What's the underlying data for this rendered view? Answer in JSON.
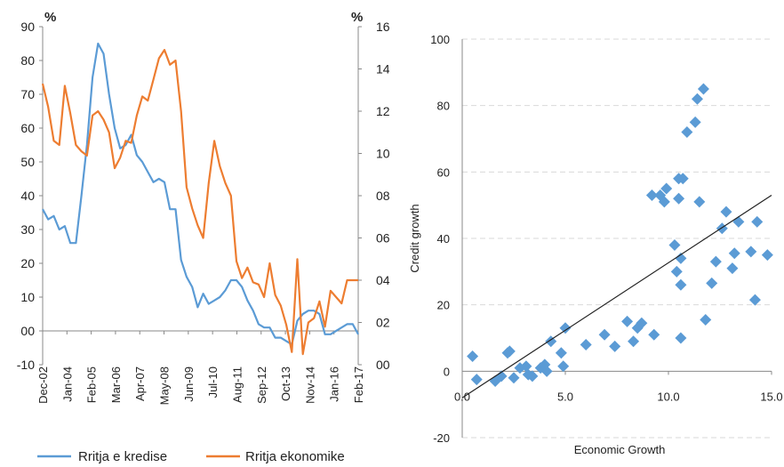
{
  "colors": {
    "credit": "#5b9bd5",
    "economic": "#ed7d31",
    "scatter": "#5b9bd5",
    "grid": "#d9d9d9",
    "axis": "#888888",
    "text": "#222222"
  },
  "chart_data": [
    {
      "type": "line",
      "left_unit": "%",
      "right_unit": "%",
      "x_ticks": [
        "Dec-02",
        "Jan-04",
        "Feb-05",
        "Mar-06",
        "Apr-07",
        "May-08",
        "Jun-09",
        "Jul-10",
        "Aug-11",
        "Sep-12",
        "Oct-13",
        "Nov-14",
        "Jan-16",
        "Feb-17"
      ],
      "y_left_ticks": [
        "90",
        "80",
        "70",
        "60",
        "50",
        "40",
        "30",
        "20",
        "10",
        "00",
        "-10"
      ],
      "y_right_ticks": [
        "16",
        "14",
        "12",
        "10",
        "08",
        "06",
        "04",
        "02",
        "00"
      ],
      "ylim_left": [
        -10,
        90
      ],
      "ylim_right": [
        0,
        16
      ],
      "series": [
        {
          "name": "Rritja e kredise",
          "axis": "left",
          "values": [
            36,
            33,
            34,
            30,
            31,
            26,
            26,
            40,
            55,
            75,
            85,
            82,
            70,
            60,
            54,
            55,
            58,
            52,
            50,
            47,
            44,
            45,
            44,
            36,
            36,
            21,
            16,
            13,
            7,
            11,
            8,
            9,
            10,
            12,
            15,
            15,
            13,
            9,
            6,
            2,
            1,
            1,
            -2,
            -2,
            -3,
            -4,
            3,
            5,
            6,
            6,
            5,
            -1,
            -1,
            0,
            1,
            2,
            2,
            -1
          ]
        },
        {
          "name": "Rritja ekonomike",
          "axis": "right",
          "values": [
            13.3,
            12.2,
            10.6,
            10.4,
            13.2,
            11.9,
            10.4,
            10.1,
            9.9,
            11.8,
            12.0,
            11.6,
            11.0,
            9.3,
            9.8,
            10.6,
            10.5,
            11.8,
            12.7,
            12.5,
            13.5,
            14.5,
            14.9,
            14.2,
            14.4,
            12.0,
            8.4,
            7.4,
            6.6,
            6.0,
            8.6,
            10.6,
            9.4,
            8.6,
            8.0,
            4.9,
            4.1,
            4.6,
            3.9,
            3.8,
            3.2,
            4.8,
            3.3,
            2.8,
            1.9,
            0.6,
            5.0,
            0.5,
            2.0,
            2.2,
            3.0,
            1.8,
            3.5,
            3.2,
            2.9,
            4.0,
            4.0,
            4.0
          ]
        }
      ]
    },
    {
      "type": "scatter",
      "xlabel": "Economic Growth",
      "ylabel": "Credit growth",
      "xlim": [
        0,
        15
      ],
      "ylim": [
        -20,
        100
      ],
      "x_tick_labels": [
        "0.0",
        "5.0",
        "10.0",
        "15.0"
      ],
      "y_tick_labels": [
        "100",
        "80",
        "60",
        "40",
        "20",
        "0",
        "-20"
      ],
      "trendline": {
        "x0": 0,
        "y0": -8,
        "x1": 15,
        "y1": 53
      },
      "points": [
        {
          "x": 0.5,
          "y": 4.5
        },
        {
          "x": 0.7,
          "y": -2.5
        },
        {
          "x": 1.6,
          "y": -3
        },
        {
          "x": 1.9,
          "y": -1.5
        },
        {
          "x": 2.2,
          "y": 5.5
        },
        {
          "x": 2.3,
          "y": 6
        },
        {
          "x": 2.5,
          "y": -2
        },
        {
          "x": 2.8,
          "y": 1
        },
        {
          "x": 3.1,
          "y": 1.5
        },
        {
          "x": 3.2,
          "y": -1
        },
        {
          "x": 3.4,
          "y": -1.5
        },
        {
          "x": 3.8,
          "y": 1
        },
        {
          "x": 4.0,
          "y": 2
        },
        {
          "x": 4.1,
          "y": 0
        },
        {
          "x": 4.3,
          "y": 9
        },
        {
          "x": 4.8,
          "y": 5.5
        },
        {
          "x": 4.9,
          "y": 1.5
        },
        {
          "x": 5.0,
          "y": 13
        },
        {
          "x": 6.0,
          "y": 8
        },
        {
          "x": 6.9,
          "y": 11
        },
        {
          "x": 7.4,
          "y": 7.5
        },
        {
          "x": 8.0,
          "y": 15
        },
        {
          "x": 8.3,
          "y": 9
        },
        {
          "x": 8.5,
          "y": 13
        },
        {
          "x": 8.7,
          "y": 14.5
        },
        {
          "x": 9.2,
          "y": 53
        },
        {
          "x": 9.3,
          "y": 11
        },
        {
          "x": 9.6,
          "y": 53
        },
        {
          "x": 9.8,
          "y": 51
        },
        {
          "x": 9.9,
          "y": 55
        },
        {
          "x": 10.3,
          "y": 38
        },
        {
          "x": 10.4,
          "y": 30
        },
        {
          "x": 10.5,
          "y": 52
        },
        {
          "x": 10.5,
          "y": 58
        },
        {
          "x": 10.6,
          "y": 34
        },
        {
          "x": 10.6,
          "y": 26
        },
        {
          "x": 10.7,
          "y": 58
        },
        {
          "x": 10.9,
          "y": 72
        },
        {
          "x": 10.6,
          "y": 10
        },
        {
          "x": 11.3,
          "y": 75
        },
        {
          "x": 11.4,
          "y": 82
        },
        {
          "x": 11.5,
          "y": 51
        },
        {
          "x": 11.7,
          "y": 85
        },
        {
          "x": 11.8,
          "y": 15.5
        },
        {
          "x": 12.1,
          "y": 26.5
        },
        {
          "x": 12.3,
          "y": 33
        },
        {
          "x": 12.6,
          "y": 43
        },
        {
          "x": 12.8,
          "y": 48
        },
        {
          "x": 13.1,
          "y": 31
        },
        {
          "x": 13.2,
          "y": 35.5
        },
        {
          "x": 13.4,
          "y": 45
        },
        {
          "x": 14.0,
          "y": 36
        },
        {
          "x": 14.2,
          "y": 21.5
        },
        {
          "x": 14.3,
          "y": 45
        },
        {
          "x": 14.8,
          "y": 35
        }
      ]
    }
  ]
}
